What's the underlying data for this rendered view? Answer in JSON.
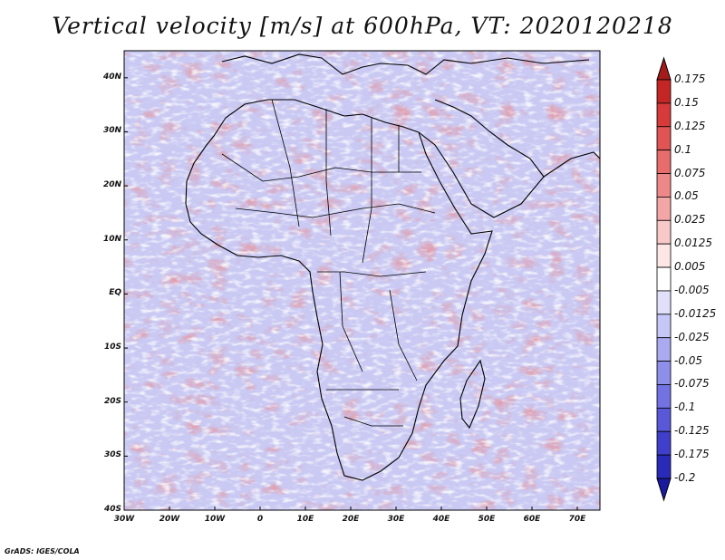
{
  "title": "Vertical velocity [m/s] at 600hPa, VT: 2020120218",
  "credit": "GrADS: IGES/COLA",
  "map": {
    "lon_range": [
      -30,
      75
    ],
    "lat_range": [
      -40,
      45
    ],
    "lon_ticks": [
      {
        "value": -30,
        "label": "30W"
      },
      {
        "value": -20,
        "label": "20W"
      },
      {
        "value": -10,
        "label": "10W"
      },
      {
        "value": 0,
        "label": "0"
      },
      {
        "value": 10,
        "label": "10E"
      },
      {
        "value": 20,
        "label": "20E"
      },
      {
        "value": 30,
        "label": "30E"
      },
      {
        "value": 40,
        "label": "40E"
      },
      {
        "value": 50,
        "label": "50E"
      },
      {
        "value": 60,
        "label": "60E"
      },
      {
        "value": 70,
        "label": "70E"
      }
    ],
    "lat_ticks": [
      {
        "value": 40,
        "label": "40N"
      },
      {
        "value": 30,
        "label": "30N"
      },
      {
        "value": 20,
        "label": "20N"
      },
      {
        "value": 10,
        "label": "10N"
      },
      {
        "value": 0,
        "label": "EQ"
      },
      {
        "value": -10,
        "label": "10S"
      },
      {
        "value": -20,
        "label": "20S"
      },
      {
        "value": -30,
        "label": "30S"
      },
      {
        "value": -40,
        "label": "40S"
      }
    ]
  },
  "colorbar": {
    "labels": [
      "0.175",
      "0.15",
      "0.125",
      "0.1",
      "0.075",
      "0.05",
      "0.025",
      "0.0125",
      "0.005",
      "-0.005",
      "-0.0125",
      "-0.025",
      "-0.05",
      "-0.075",
      "-0.1",
      "-0.125",
      "-0.175",
      "-0.2"
    ],
    "colors": [
      "#a31b1b",
      "#c42626",
      "#d63a3a",
      "#e05454",
      "#e86c6c",
      "#ee8888",
      "#f4a6a6",
      "#f9c9c9",
      "#fde6e6",
      "#ffffff",
      "#e0e0fb",
      "#c6c6f7",
      "#aaaaf1",
      "#8e8eeb",
      "#7272e2",
      "#5858d9",
      "#3f3fcc",
      "#2a2ab8",
      "#1a1aa0"
    ]
  }
}
